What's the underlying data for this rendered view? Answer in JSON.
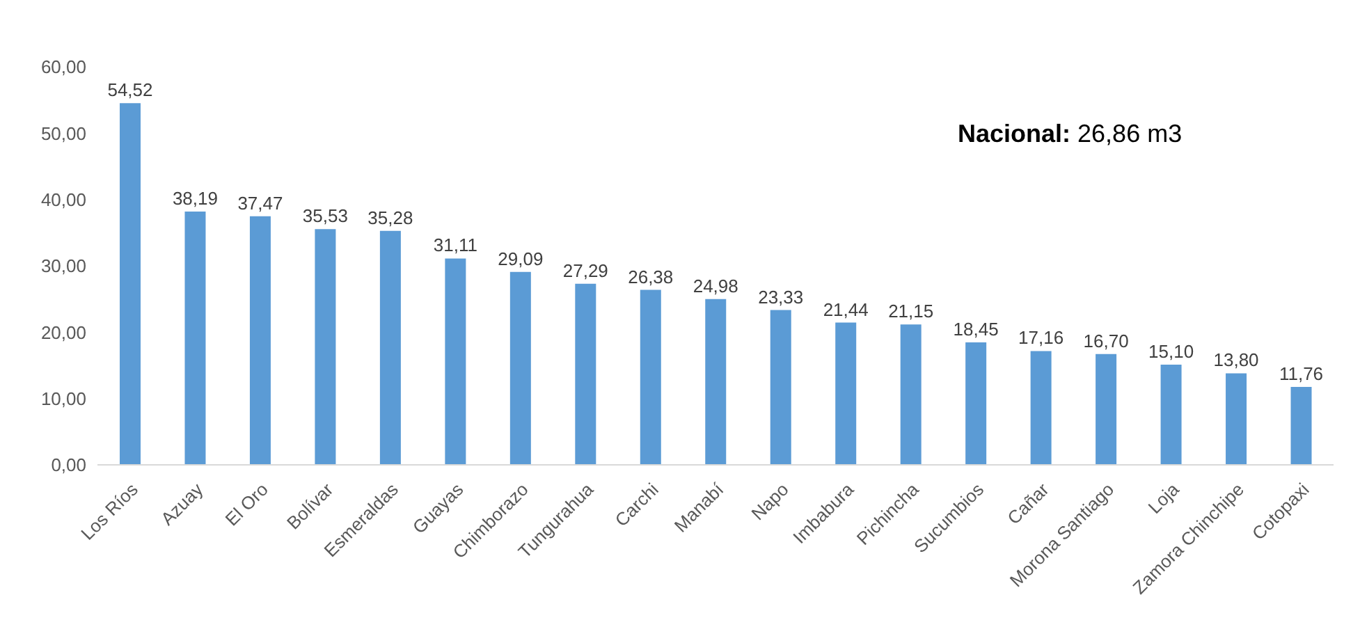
{
  "chart_data": {
    "type": "bar",
    "categories": [
      "Los Ríos",
      "Azuay",
      "El Oro",
      "Bolívar",
      "Esmeraldas",
      "Guayas",
      "Chimborazo",
      "Tungurahua",
      "Carchi",
      "Manabí",
      "Napo",
      "Imbabura",
      "Pichincha",
      "Sucumbios",
      "Cañar",
      "Morona Santiago",
      "Loja",
      "Zamora Chinchipe",
      "Cotopaxi"
    ],
    "values": [
      54.52,
      38.19,
      37.47,
      35.53,
      35.28,
      31.11,
      29.09,
      27.29,
      26.38,
      24.98,
      23.33,
      21.44,
      21.15,
      18.45,
      17.16,
      16.7,
      15.1,
      13.8,
      11.76
    ],
    "value_labels": [
      "54,52",
      "38,19",
      "37,47",
      "35,53",
      "35,28",
      "31,11",
      "29,09",
      "27,29",
      "26,38",
      "24,98",
      "23,33",
      "21,44",
      "21,15",
      "18,45",
      "17,16",
      "16,70",
      "15,10",
      "13,80",
      "11,76"
    ],
    "color": "#5b9bd5",
    "ylim": [
      0,
      60
    ],
    "yticks": [
      {
        "value": 0,
        "label": "0,00"
      },
      {
        "value": 10,
        "label": "10,00"
      },
      {
        "value": 20,
        "label": "20,00"
      },
      {
        "value": 30,
        "label": "30,00"
      },
      {
        "value": 40,
        "label": "40,00"
      },
      {
        "value": 50,
        "label": "50,00"
      },
      {
        "value": 60,
        "label": "60,00"
      }
    ],
    "annotations": [
      "Nacional: 26,86 m3"
    ],
    "grid": false
  }
}
